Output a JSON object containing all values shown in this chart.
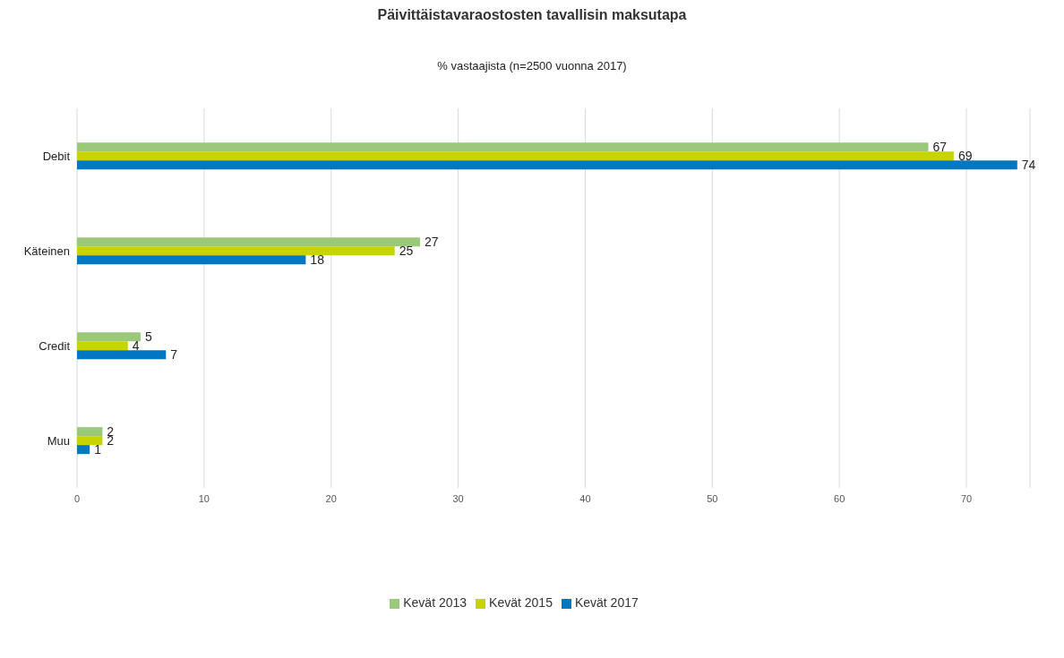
{
  "chart_data": {
    "type": "bar",
    "orientation": "horizontal",
    "title": "Päivittäistavaraostosten tavallisin maksutapa",
    "subtitle": "% vastaajista (n=2500 vuonna 2017)",
    "categories": [
      "Debit",
      "Käteinen",
      "Credit",
      "Muu"
    ],
    "series": [
      {
        "name": "Kevät 2013",
        "color": "#9bc97a",
        "values": [
          67,
          27,
          5,
          2
        ]
      },
      {
        "name": "Kevät 2015",
        "color": "#c8d400",
        "values": [
          69,
          25,
          4,
          2
        ]
      },
      {
        "name": "Kevät 2017",
        "color": "#0077c0",
        "values": [
          74,
          18,
          7,
          1
        ]
      }
    ],
    "xlim": [
      0,
      75
    ],
    "xticks": [
      0,
      10,
      20,
      30,
      40,
      50,
      60,
      70
    ],
    "grid": "x",
    "legend": "bottom",
    "data_labels": true
  }
}
